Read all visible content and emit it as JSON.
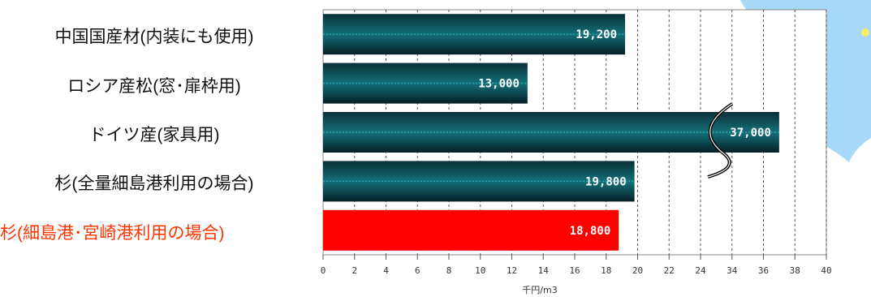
{
  "chart_data": {
    "type": "bar",
    "orientation": "horizontal",
    "categories": [
      "中国国産材(内装にも使用)",
      "ロシア産松(窓･扉枠用)",
      "ドイツ産(家具用)",
      "杉(全量細島港利用の場合)",
      "杉(細島港･宮崎港利用の場合)"
    ],
    "values": [
      19200,
      13000,
      37000,
      19800,
      18800
    ],
    "value_labels": [
      "19,200",
      "13,000",
      "37,000",
      "19,800",
      "18,800"
    ],
    "highlight_index": 4,
    "x_ticks": [
      "0",
      "2",
      "4",
      "6",
      "8",
      "10",
      "12",
      "14",
      "16",
      "18",
      "20",
      "22",
      "24",
      "34",
      "36",
      "38",
      "40"
    ],
    "x_unit_label": "千円/m3",
    "axis_break": "between 24 and 34",
    "grid": true,
    "colors": {
      "bar_fill": "#0d4f57",
      "bar_dark": "#062a30",
      "highlight": "#ff0000",
      "highlight_text": "#ff3300",
      "map_water": "#a8d8f8"
    }
  }
}
